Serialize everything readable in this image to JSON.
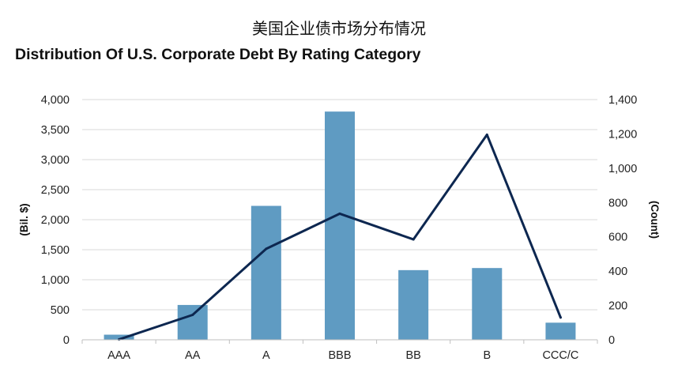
{
  "header": {
    "chinese_title": "美国企业债市场分布情况"
  },
  "chart_data": {
    "type": "bar",
    "title": "Distribution Of U.S. Corporate Debt By Rating Category",
    "categories": [
      "AAA",
      "AA",
      "A",
      "BBB",
      "BB",
      "B",
      "CCC/C"
    ],
    "series": [
      {
        "values": [
          85,
          580,
          2230,
          3800,
          1160,
          1195,
          285
        ],
        "axis": "left",
        "kind": "bar",
        "color": "#5f9bc2"
      },
      {
        "values": [
          2,
          145,
          530,
          735,
          585,
          1195,
          130
        ],
        "axis": "right",
        "kind": "line",
        "color": "#0d2750"
      }
    ],
    "ylabel": "(Bil. $)",
    "y2label": "(Count)",
    "ylim": [
      0,
      4000
    ],
    "y2lim": [
      0,
      1400
    ],
    "yticks": [
      "0",
      "500",
      "1,000",
      "1,500",
      "2,000",
      "2,500",
      "3,000",
      "3,500",
      "4,000"
    ],
    "y2ticks": [
      "0",
      "200",
      "400",
      "600",
      "800",
      "1,000",
      "1,200",
      "1,400"
    ],
    "grid": true,
    "legend": "none"
  }
}
